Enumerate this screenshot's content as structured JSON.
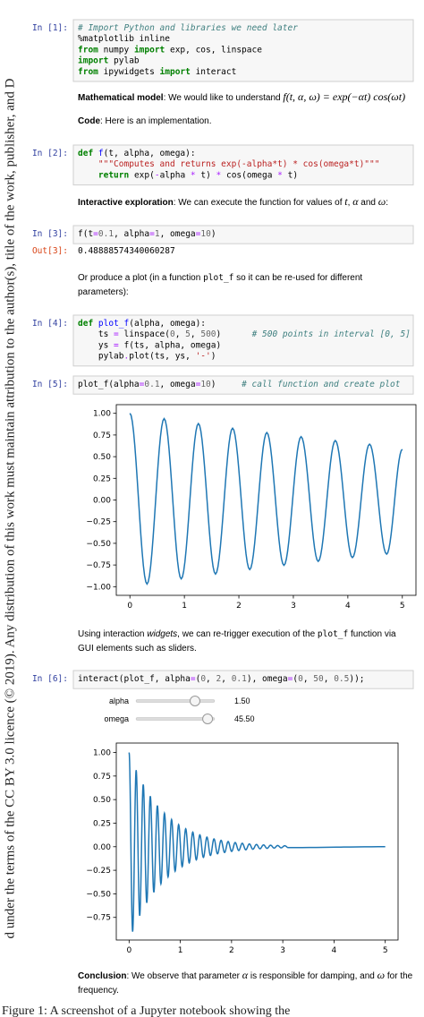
{
  "side_note": "d under the terms of the CC BY 3.0 licence (© 2019). Any distribution of this work must maintain attribution to the author(s), title of the work, publisher, and D",
  "caption": "Figure 1: A screenshot of a Jupyter notebook showing the",
  "cells": [
    {
      "kind": "code",
      "prompt": "In [1]:",
      "lines": [
        [
          [
            "# Import Python and libraries we need later",
            "cm"
          ]
        ],
        [
          [
            "%matplotlib inline",
            "p"
          ]
        ],
        [
          [
            "from",
            "kw"
          ],
          [
            " numpy ",
            "p"
          ],
          [
            "import",
            "kw"
          ],
          [
            " exp, cos, linspace",
            "p"
          ]
        ],
        [
          [
            "import",
            "kw"
          ],
          [
            " pylab",
            "p"
          ]
        ],
        [
          [
            "from",
            "kw"
          ],
          [
            " ipywidgets ",
            "p"
          ],
          [
            "import",
            "kw"
          ],
          [
            " interact",
            "p"
          ]
        ]
      ]
    },
    {
      "kind": "markdown",
      "lines": [
        [
          [
            "Mathematical model",
            "b"
          ],
          [
            ": We would like to understand ",
            "t"
          ],
          [
            "f(t, α, ω) = exp(−αt) cos(ωt)",
            "m"
          ]
        ]
      ]
    },
    {
      "kind": "markdown",
      "lines": [
        [
          [
            "Code",
            "b"
          ],
          [
            ": Here is an implementation.",
            "t"
          ]
        ]
      ]
    },
    {
      "kind": "code",
      "prompt": "In [2]:",
      "lines": [
        [
          [
            "def",
            "kw"
          ],
          [
            " ",
            "p"
          ],
          [
            "f",
            "fn"
          ],
          [
            "(t, alpha, omega):",
            "p"
          ]
        ],
        [
          [
            "    ",
            "p"
          ],
          [
            "\"\"\"Computes and returns exp(-alpha*t) * cos(omega*t)\"\"\"",
            "st"
          ]
        ],
        [
          [
            "    ",
            "p"
          ],
          [
            "return",
            "kw"
          ],
          [
            " exp(",
            "p"
          ],
          [
            "-",
            "op"
          ],
          [
            "alpha ",
            "p"
          ],
          [
            "*",
            "op"
          ],
          [
            " t) ",
            "p"
          ],
          [
            "*",
            "op"
          ],
          [
            " cos(omega ",
            "p"
          ],
          [
            "*",
            "op"
          ],
          [
            " t)",
            "p"
          ]
        ]
      ]
    },
    {
      "kind": "markdown",
      "lines": [
        [
          [
            "Interactive exploration",
            "b"
          ],
          [
            ": We can execute the function for values of ",
            "t"
          ],
          [
            "t",
            "m"
          ],
          [
            ", ",
            "t"
          ],
          [
            "α",
            "m"
          ],
          [
            " and ",
            "t"
          ],
          [
            "ω",
            "m"
          ],
          [
            ":",
            "t"
          ]
        ]
      ]
    },
    {
      "kind": "code",
      "prompt": "In [3]:",
      "lines": [
        [
          [
            "f(t",
            "p"
          ],
          [
            "=",
            "op"
          ],
          [
            "0.1",
            "nm"
          ],
          [
            ", alpha",
            "p"
          ],
          [
            "=",
            "op"
          ],
          [
            "1",
            "nm"
          ],
          [
            ", omega",
            "p"
          ],
          [
            "=",
            "op"
          ],
          [
            "10",
            "nm"
          ],
          [
            ")",
            "p"
          ]
        ]
      ]
    },
    {
      "kind": "output",
      "prompt": "Out[3]:",
      "lines": [
        [
          [
            "0.48888574340060287",
            "p"
          ]
        ]
      ]
    },
    {
      "kind": "markdown",
      "lines": [
        [
          [
            "Or produce a plot (in a function ",
            "t"
          ],
          [
            "plot_f",
            "c"
          ],
          [
            " so it can be re-used for different",
            "t"
          ]
        ],
        [
          [
            "parameters):",
            "t"
          ]
        ]
      ]
    },
    {
      "kind": "code",
      "prompt": "In [4]:",
      "lines": [
        [
          [
            "def",
            "kw"
          ],
          [
            " ",
            "p"
          ],
          [
            "plot_f",
            "fn"
          ],
          [
            "(alpha, omega):",
            "p"
          ]
        ],
        [
          [
            "    ts ",
            "p"
          ],
          [
            "=",
            "op"
          ],
          [
            " linspace(",
            "p"
          ],
          [
            "0",
            "nm"
          ],
          [
            ", ",
            "p"
          ],
          [
            "5",
            "nm"
          ],
          [
            ", ",
            "p"
          ],
          [
            "500",
            "nm"
          ],
          [
            ")      ",
            "p"
          ],
          [
            "# 500 points in interval [0, 5]",
            "cm"
          ]
        ],
        [
          [
            "    ys ",
            "p"
          ],
          [
            "=",
            "op"
          ],
          [
            " f(ts, alpha, omega)",
            "p"
          ]
        ],
        [
          [
            "    pylab",
            "p"
          ],
          [
            ".",
            "op"
          ],
          [
            "plot(ts, ys, ",
            "p"
          ],
          [
            "'-'",
            "st"
          ],
          [
            ")",
            "p"
          ]
        ]
      ]
    },
    {
      "kind": "code",
      "prompt": "In [5]:",
      "lines": [
        [
          [
            "plot_f(alpha",
            "p"
          ],
          [
            "=",
            "op"
          ],
          [
            "0.1",
            "nm"
          ],
          [
            ", omega",
            "p"
          ],
          [
            "=",
            "op"
          ],
          [
            "10",
            "nm"
          ],
          [
            ")     ",
            "p"
          ],
          [
            "# call function and create plot",
            "cm"
          ]
        ]
      ]
    },
    {
      "kind": "plot",
      "chart": {
        "type": "line",
        "color": "#1f77b4",
        "x": [
          0,
          0.314,
          0.628,
          0.942,
          1.257,
          1.571,
          1.885,
          2.199,
          2.513,
          2.827,
          3.142,
          3.456,
          3.77,
          4.084,
          4.398,
          4.712,
          5
        ],
        "values": [
          1,
          -0.9691,
          0.9391,
          -0.9101,
          0.8819,
          -0.8546,
          0.8282,
          -0.8026,
          0.7778,
          -0.7537,
          0.7304,
          -0.7078,
          0.6859,
          -0.6647,
          0.6442,
          -0.6242,
          0.585
        ],
        "xlim": [
          -0.25,
          5.25
        ],
        "ylim": [
          -1.1,
          1.1
        ],
        "xticks": [
          0,
          1,
          2,
          3,
          4,
          5
        ],
        "yticks": [
          {
            "value": 1,
            "label": "1.00"
          },
          {
            "value": 0.75,
            "label": "0.75"
          },
          {
            "value": 0.5,
            "label": "0.50"
          },
          {
            "value": 0.25,
            "label": "0.25"
          },
          {
            "value": 0,
            "label": "0.00"
          },
          {
            "value": -0.25,
            "label": "−0.25"
          },
          {
            "value": -0.5,
            "label": "−0.50"
          },
          {
            "value": -0.75,
            "label": "−0.75"
          },
          {
            "value": -1,
            "label": "−1.00"
          }
        ]
      }
    },
    {
      "kind": "markdown",
      "lines": [
        [
          [
            "Using interaction ",
            "t"
          ],
          [
            "widgets",
            "i"
          ],
          [
            ", we can re-trigger execution of the ",
            "t"
          ],
          [
            "plot_f",
            "c"
          ],
          [
            " function via",
            "t"
          ]
        ],
        [
          [
            "GUI elements such as sliders.",
            "t"
          ]
        ]
      ]
    },
    {
      "kind": "code",
      "prompt": "In [6]:",
      "lines": [
        [
          [
            "interact(plot_f, alpha",
            "p"
          ],
          [
            "=",
            "op"
          ],
          [
            "(",
            "p"
          ],
          [
            "0",
            "nm"
          ],
          [
            ", ",
            "p"
          ],
          [
            "2",
            "nm"
          ],
          [
            ", ",
            "p"
          ],
          [
            "0.1",
            "nm"
          ],
          [
            "), omega",
            "p"
          ],
          [
            "=",
            "op"
          ],
          [
            "(",
            "p"
          ],
          [
            "0",
            "nm"
          ],
          [
            ", ",
            "p"
          ],
          [
            "50",
            "nm"
          ],
          [
            ", ",
            "p"
          ],
          [
            "0.5",
            "nm"
          ],
          [
            "));",
            "p"
          ]
        ]
      ]
    },
    {
      "kind": "widgets",
      "widgets": [
        {
          "label": "alpha",
          "value": 1.5,
          "value_label": "1.50",
          "min": 0,
          "max": 2
        },
        {
          "label": "omega",
          "value": 45.5,
          "value_label": "45.50",
          "min": 0,
          "max": 50
        }
      ]
    },
    {
      "kind": "plot",
      "chart": {
        "type": "line",
        "color": "#1f77b4",
        "x": [
          0,
          0.069,
          0.138,
          0.207,
          0.276,
          0.345,
          0.414,
          0.483,
          0.552,
          0.621,
          0.69,
          0.76,
          0.829,
          0.898,
          0.967,
          1.036,
          1.105,
          1.174,
          1.243,
          1.312,
          1.381,
          1.45,
          1.519,
          1.588,
          1.657,
          1.726,
          1.795,
          1.864,
          1.933,
          2.002,
          2.071,
          2.14,
          2.209,
          2.278,
          2.347,
          2.416,
          2.486,
          2.555,
          2.624,
          2.693,
          2.762,
          2.831,
          2.9,
          2.969,
          3.038,
          3.107,
          5
        ],
        "values": [
          1,
          -0.9016,
          0.8129,
          -0.7329,
          0.6608,
          -0.5958,
          0.5372,
          -0.4843,
          0.4367,
          -0.3937,
          0.355,
          -0.32,
          0.2886,
          -0.2602,
          0.2346,
          -0.2115,
          0.1907,
          -0.1719,
          0.155,
          -0.1398,
          0.126,
          -0.1136,
          0.1024,
          -0.0924,
          0.0833,
          -0.0751,
          0.0677,
          -0.061,
          0.055,
          -0.0496,
          0.0447,
          -0.0403,
          0.0364,
          -0.0328,
          0.0296,
          -0.0266,
          0.024,
          -0.0217,
          0.0195,
          -0.0176,
          0.0159,
          -0.0143,
          0.0129,
          -0.0116,
          0.0105,
          -0.0095,
          0
        ],
        "xlim": [
          -0.25,
          5.25
        ],
        "ylim": [
          -0.99,
          1.1
        ],
        "xticks": [
          0,
          1,
          2,
          3,
          4,
          5
        ],
        "yticks": [
          {
            "value": 1,
            "label": "1.00"
          },
          {
            "value": 0.75,
            "label": "0.75"
          },
          {
            "value": 0.5,
            "label": "0.50"
          },
          {
            "value": 0.25,
            "label": "0.25"
          },
          {
            "value": 0,
            "label": "0.00"
          },
          {
            "value": -0.25,
            "label": "−0.25"
          },
          {
            "value": -0.5,
            "label": "−0.50"
          },
          {
            "value": -0.75,
            "label": "−0.75"
          }
        ]
      }
    },
    {
      "kind": "markdown",
      "lines": [
        [
          [
            "Conclusion",
            "b"
          ],
          [
            ": We observe that parameter ",
            "t"
          ],
          [
            "α",
            "m"
          ],
          [
            " is responsible for damping, and ",
            "t"
          ],
          [
            "ω",
            "m"
          ],
          [
            " for the",
            "t"
          ]
        ],
        [
          [
            "frequency.",
            "t"
          ]
        ]
      ]
    }
  ]
}
